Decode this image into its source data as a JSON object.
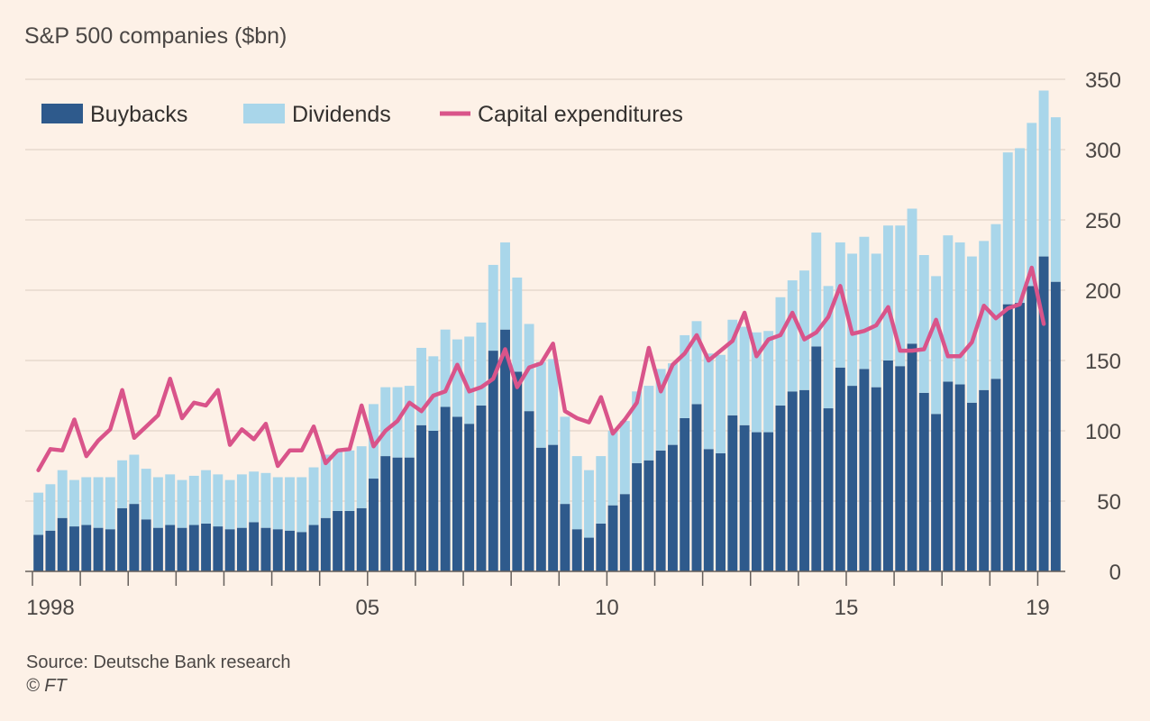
{
  "chart_data": {
    "type": "bar",
    "stacked": true,
    "ylabel": "S&P 500 companies ($bn)",
    "ylim": [
      0,
      350
    ],
    "y_ticks": [
      0,
      50,
      100,
      150,
      200,
      250,
      300,
      350
    ],
    "x_tick_labels": [
      "1998",
      "05",
      "10",
      "15",
      "19"
    ],
    "x_tick_years": [
      1998,
      2005,
      2010,
      2015,
      2019
    ],
    "x_start": 1998,
    "x_step": 0.25,
    "grid": true,
    "legend_position": "top-left",
    "series": [
      {
        "name": "Buybacks",
        "kind": "bar",
        "color": "#2e5a8c",
        "values": [
          26,
          29,
          38,
          32,
          33,
          31,
          30,
          45,
          48,
          37,
          31,
          33,
          31,
          33,
          34,
          32,
          30,
          31,
          35,
          31,
          30,
          29,
          28,
          33,
          38,
          43,
          43,
          45,
          66,
          82,
          81,
          81,
          104,
          100,
          117,
          110,
          105,
          118,
          157,
          172,
          142,
          114,
          88,
          90,
          48,
          30,
          24,
          34,
          47,
          55,
          77,
          79,
          86,
          90,
          109,
          119,
          87,
          84,
          111,
          104,
          99,
          99,
          118,
          128,
          129,
          160,
          116,
          145,
          132,
          144,
          131,
          150,
          146,
          162,
          127,
          112,
          135,
          133,
          120,
          129,
          137,
          190,
          191,
          203,
          224,
          206
        ]
      },
      {
        "name": "Dividends",
        "kind": "bar",
        "color": "#a9d6ea",
        "values": [
          30,
          33,
          34,
          33,
          34,
          36,
          37,
          34,
          35,
          36,
          36,
          36,
          34,
          35,
          38,
          37,
          35,
          38,
          36,
          39,
          37,
          38,
          39,
          41,
          45,
          42,
          43,
          44,
          53,
          49,
          50,
          51,
          55,
          53,
          55,
          55,
          62,
          59,
          61,
          62,
          67,
          62,
          61,
          61,
          62,
          52,
          48,
          48,
          53,
          52,
          51,
          53,
          58,
          58,
          59,
          59,
          68,
          70,
          68,
          70,
          71,
          72,
          77,
          79,
          85,
          81,
          87,
          89,
          94,
          94,
          95,
          96,
          100,
          96,
          98,
          98,
          104,
          101,
          104,
          106,
          110,
          108,
          110,
          116,
          118,
          117
        ]
      },
      {
        "name": "Capital expenditures",
        "kind": "line",
        "color": "#d9548a",
        "values": [
          72,
          87,
          86,
          108,
          82,
          93,
          101,
          129,
          95,
          103,
          111,
          137,
          109,
          120,
          118,
          129,
          90,
          101,
          94,
          105,
          75,
          86,
          86,
          103,
          77,
          86,
          87,
          118,
          89,
          100,
          107,
          120,
          114,
          125,
          128,
          147,
          128,
          131,
          137,
          158,
          131,
          145,
          148,
          162,
          114,
          109,
          106,
          124,
          98,
          108,
          120,
          159,
          128,
          147,
          155,
          168,
          150,
          157,
          164,
          184,
          153,
          165,
          168,
          184,
          165,
          170,
          181,
          203,
          169,
          171,
          175,
          188,
          157,
          157,
          158,
          179,
          153,
          153,
          163,
          189,
          180,
          187,
          190,
          216,
          176
        ]
      }
    ]
  },
  "footer": {
    "source": "Source: Deutsche Bank research",
    "credit": "© FT"
  }
}
